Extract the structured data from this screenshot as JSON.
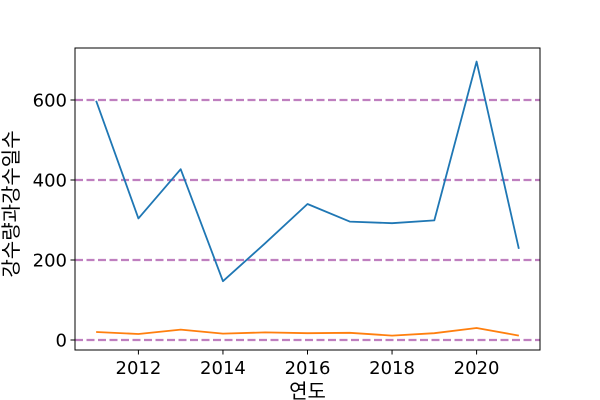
{
  "chart_data": {
    "type": "line",
    "title": "",
    "xlabel": "연도",
    "ylabel": "강수량과강수일수",
    "x": [
      2011,
      2012,
      2013,
      2014,
      2015,
      2016,
      2017,
      2018,
      2019,
      2020,
      2021
    ],
    "xlim": [
      2010.5,
      2021.5
    ],
    "ylim": [
      -25,
      730
    ],
    "xticks": [
      2012,
      2014,
      2016,
      2018,
      2020
    ],
    "yticks": [
      0,
      200,
      400,
      600
    ],
    "hlines": {
      "values": [
        0,
        200,
        400,
        600
      ],
      "color": "#bf7fbf",
      "style": "dashed"
    },
    "grid": false,
    "legend": "none",
    "series": [
      {
        "color": "#1f77b4",
        "values": [
          598,
          304,
          427,
          147,
          242,
          340,
          296,
          292,
          299,
          696,
          228
        ]
      },
      {
        "color": "#ff7f0e",
        "values": [
          20,
          15,
          26,
          16,
          19,
          17,
          18,
          11,
          17,
          30,
          11
        ]
      }
    ]
  }
}
